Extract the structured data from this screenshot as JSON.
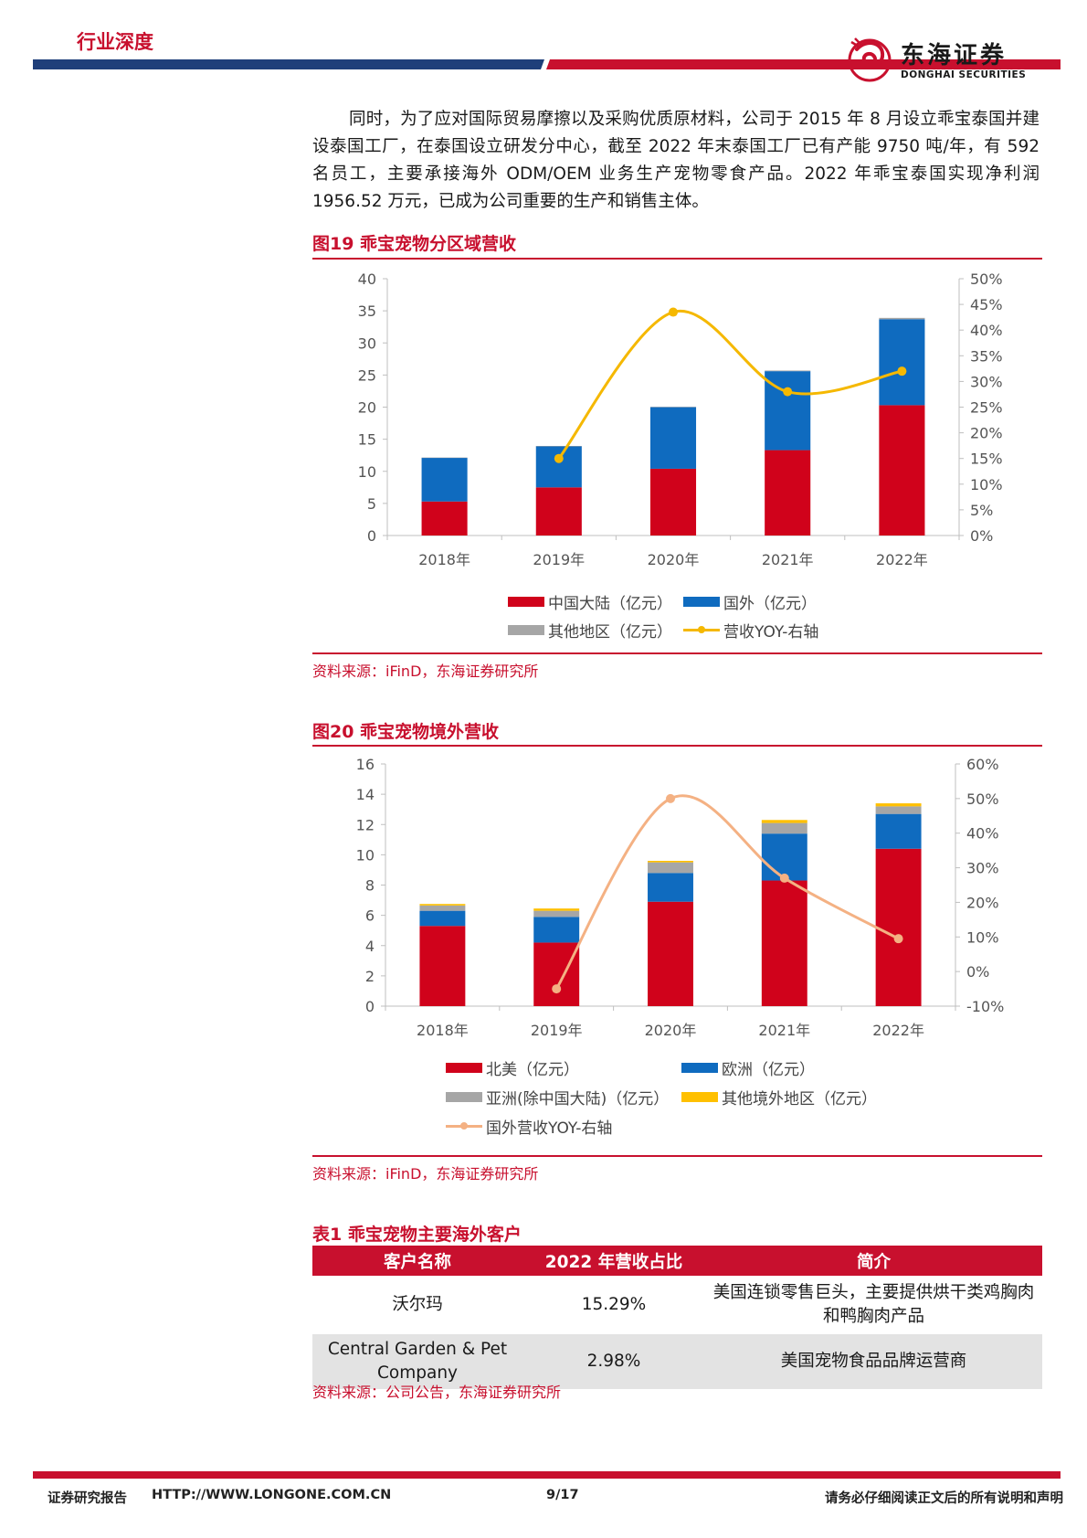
{
  "header": {
    "title": "行业深度"
  },
  "logo": {
    "cn": "东海证券",
    "en": "DONGHAI SECURITIES"
  },
  "intro": "同时，为了应对国际贸易摩擦以及采购优质原材料，公司于 2015 年 8 月设立乖宝泰国并建设泰国工厂，在泰国设立研发分中心，截至 2022 年末泰国工厂已有产能 9750 吨/年，有 592 名员工，主要承接海外 ODM/OEM 业务生产宠物零食产品。2022 年乖宝泰国实现净利润 1956.52 万元，已成为公司重要的生产和销售主体。",
  "figure19": {
    "title": "图19  乖宝宠物分区域营收",
    "source": "资料来源：iFinD，东海证券研究所",
    "legend": [
      "中国大陆（亿元）",
      "国外（亿元）",
      "其他地区（亿元）",
      "营收YOY-右轴"
    ]
  },
  "figure20": {
    "title": "图20  乖宝宠物境外营收",
    "source": "资料来源：iFinD，东海证券研究所",
    "legend": [
      "北美（亿元）",
      "欧洲（亿元）",
      "亚洲(除中国大陆)（亿元）",
      "其他境外地区（亿元）",
      "国外营收YOY-右轴"
    ]
  },
  "table1": {
    "title": "表1  乖宝宠物主要海外客户",
    "headers": [
      "客户名称",
      "2022 年营收占比",
      "简介"
    ],
    "rows": [
      [
        "沃尔玛",
        "15.29%",
        "美国连锁零售巨头，主要提供烘干类鸡胸肉和鸭胸肉产品"
      ],
      [
        "Central Garden & Pet Company",
        "2.98%",
        "美国宠物食品品牌运营商"
      ]
    ],
    "source": "资料来源：公司公告，东海证券研究所"
  },
  "footer": {
    "left": "证券研究报告",
    "url": "HTTP://WWW.LONGONE.COM.CN",
    "page": "9/17",
    "right": "请务必仔细阅读正文后的所有说明和声明"
  },
  "colors": {
    "red": "#d0021b",
    "blue": "#0f6bbf",
    "gray": "#a6a6a6",
    "yellow": "#ffc000",
    "yoy19": "#f5b800",
    "yoy20": "#f4b183",
    "brand": "#c8102e"
  },
  "chart_data": [
    {
      "type": "bar",
      "title": "图19  乖宝宠物分区域营收",
      "categories": [
        "2018年",
        "2019年",
        "2020年",
        "2021年",
        "2022年"
      ],
      "stacked": true,
      "ylim": [
        0,
        40
      ],
      "yticks": [
        "0",
        "5",
        "10",
        "15",
        "20",
        "25",
        "30",
        "35",
        "40"
      ],
      "y2lim": [
        0,
        50
      ],
      "y2ticks": [
        "0%",
        "5%",
        "10%",
        "15%",
        "20%",
        "25%",
        "30%",
        "35%",
        "40%",
        "45%",
        "50%"
      ],
      "series": [
        {
          "name": "中国大陆（亿元）",
          "values": [
            5.3,
            7.5,
            10.4,
            13.3,
            20.3
          ],
          "color": "#d0021b"
        },
        {
          "name": "国外（亿元）",
          "values": [
            6.8,
            6.4,
            9.6,
            12.3,
            13.4
          ],
          "color": "#0f6bbf"
        },
        {
          "name": "其他地区（亿元）",
          "values": [
            0.05,
            0.05,
            0.05,
            0.1,
            0.2
          ],
          "color": "#a6a6a6"
        },
        {
          "name": "营收YOY-右轴",
          "type": "line",
          "axis": "right",
          "values": [
            null,
            15.0,
            43.5,
            28.0,
            32.0
          ],
          "color": "#f5b800"
        }
      ],
      "legend": "bottom"
    },
    {
      "type": "bar",
      "title": "图20  乖宝宠物境外营收",
      "categories": [
        "2018年",
        "2019年",
        "2020年",
        "2021年",
        "2022年"
      ],
      "stacked": true,
      "ylim": [
        0,
        16
      ],
      "yticks": [
        "0",
        "2",
        "4",
        "6",
        "8",
        "10",
        "12",
        "14",
        "16"
      ],
      "y2lim": [
        -10,
        60
      ],
      "y2ticks": [
        "-10%",
        "0%",
        "10%",
        "20%",
        "30%",
        "40%",
        "50%",
        "60%"
      ],
      "series": [
        {
          "name": "北美（亿元）",
          "values": [
            5.3,
            4.2,
            6.9,
            8.3,
            10.4
          ],
          "color": "#d0021b"
        },
        {
          "name": "欧洲（亿元）",
          "values": [
            1.0,
            1.7,
            1.9,
            3.1,
            2.3
          ],
          "color": "#0f6bbf"
        },
        {
          "name": "亚洲(除中国大陆)（亿元）",
          "values": [
            0.35,
            0.4,
            0.7,
            0.7,
            0.5
          ],
          "color": "#a6a6a6"
        },
        {
          "name": "其他境外地区（亿元）",
          "values": [
            0.1,
            0.15,
            0.1,
            0.2,
            0.2
          ],
          "color": "#ffc000"
        },
        {
          "name": "国外营收YOY-右轴",
          "type": "line",
          "axis": "right",
          "values": [
            null,
            -5.0,
            50.0,
            27.0,
            9.5
          ],
          "color": "#f4b183"
        }
      ],
      "legend": "bottom"
    }
  ]
}
